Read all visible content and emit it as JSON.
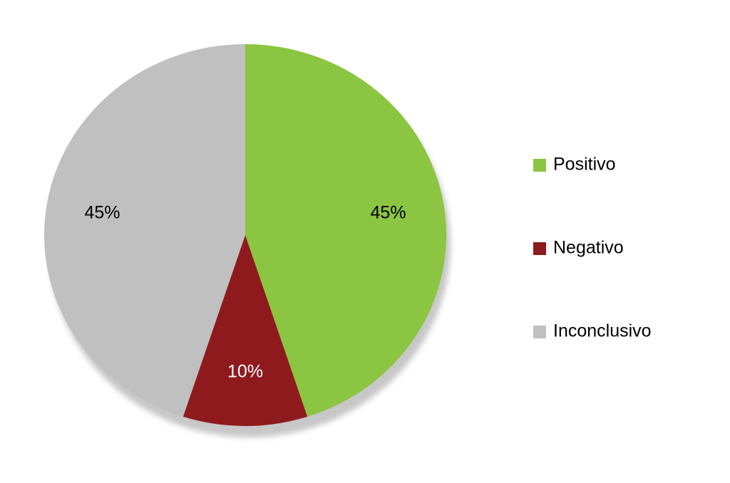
{
  "chart_data": {
    "type": "pie",
    "categories": [
      "Positivo",
      "Negativo",
      "Inconclusivo"
    ],
    "values": [
      45,
      10,
      45
    ],
    "value_labels": [
      "45%",
      "10%",
      "45%"
    ],
    "colors": [
      "#8bc541",
      "#8e1a1e",
      "#c0c0c0"
    ]
  }
}
